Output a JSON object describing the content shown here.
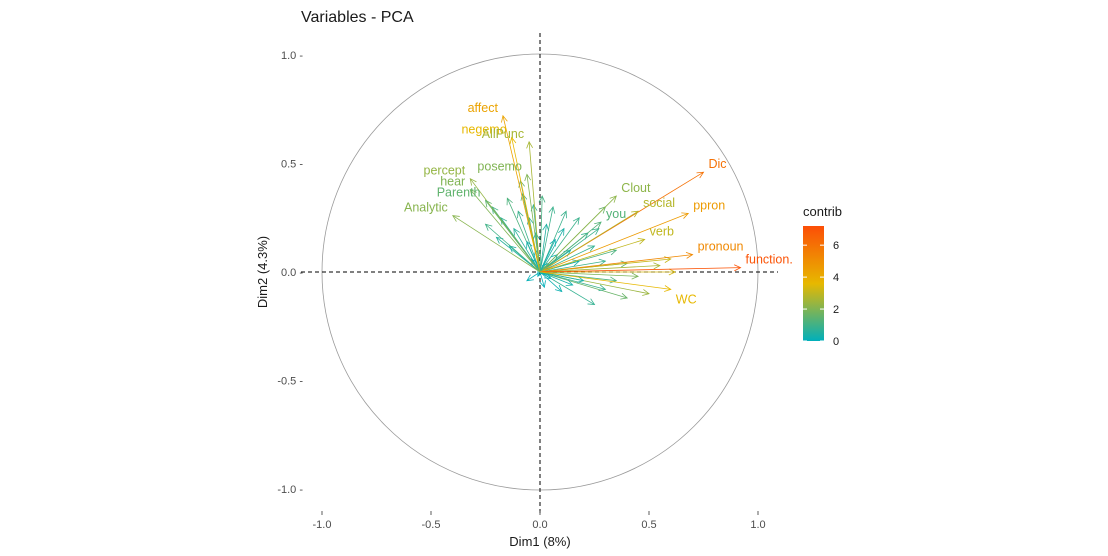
{
  "chart_data": {
    "type": "scatter",
    "subtype": "pca-variable-correlation-circle",
    "title": "Variables - PCA",
    "xlabel": "Dim1 (8%)",
    "ylabel": "Dim2 (4.3%)",
    "xlim": [
      -1.1,
      1.1
    ],
    "ylim": [
      -1.1,
      1.1
    ],
    "x_ticks": [
      -1.0,
      -0.5,
      0.0,
      0.5,
      1.0
    ],
    "y_ticks": [
      -1.0,
      -0.5,
      0.0,
      0.5,
      1.0
    ],
    "x_tick_labels": [
      "-1.0",
      "-0.5",
      "0.0",
      "0.5",
      "1.0"
    ],
    "y_tick_labels": [
      "-1.0 -",
      "-0.5 -",
      "0.0 -",
      "0.5 -",
      "1.0 -"
    ],
    "grid": false,
    "legend": {
      "title": "contrib",
      "position": "right",
      "min": 0,
      "max": 7.2,
      "ticks": [
        0,
        2,
        4,
        6
      ],
      "tick_labels": [
        "0",
        "2",
        "4",
        "6"
      ],
      "colors": [
        "#00AFBB",
        "#E7B800",
        "#FC4E07"
      ]
    },
    "labeled_variables": [
      {
        "name": "affect",
        "x": -0.17,
        "y": 0.72,
        "contrib": 4.3
      },
      {
        "name": "negemo",
        "x": -0.13,
        "y": 0.62,
        "contrib": 3.6
      },
      {
        "name": "AllPunc",
        "x": -0.05,
        "y": 0.6,
        "contrib": 2.6
      },
      {
        "name": "posemo",
        "x": -0.06,
        "y": 0.45,
        "contrib": 2.0
      },
      {
        "name": "percept",
        "x": -0.32,
        "y": 0.43,
        "contrib": 2.3
      },
      {
        "name": "hear",
        "x": -0.32,
        "y": 0.38,
        "contrib": 2.0
      },
      {
        "name": "Parenth",
        "x": -0.25,
        "y": 0.33,
        "contrib": 1.5
      },
      {
        "name": "Analytic",
        "x": -0.4,
        "y": 0.26,
        "contrib": 2.1
      },
      {
        "name": "Clout",
        "x": 0.35,
        "y": 0.35,
        "contrib": 2.2
      },
      {
        "name": "Dic",
        "x": 0.75,
        "y": 0.46,
        "contrib": 6.0
      },
      {
        "name": "social",
        "x": 0.45,
        "y": 0.28,
        "contrib": 2.8
      },
      {
        "name": "ppron",
        "x": 0.68,
        "y": 0.27,
        "contrib": 4.6
      },
      {
        "name": "you",
        "x": 0.28,
        "y": 0.23,
        "contrib": 1.3
      },
      {
        "name": "verb",
        "x": 0.48,
        "y": 0.15,
        "contrib": 3.0
      },
      {
        "name": "pronoun",
        "x": 0.7,
        "y": 0.08,
        "contrib": 5.2
      },
      {
        "name": "function.",
        "x": 0.92,
        "y": 0.02,
        "contrib": 7.0
      },
      {
        "name": "WC",
        "x": 0.6,
        "y": -0.08,
        "contrib": 3.6
      }
    ],
    "unlabeled_arrows": [
      [
        -0.22,
        0.3,
        1.0
      ],
      [
        -0.18,
        0.25,
        0.8
      ],
      [
        -0.15,
        0.34,
        1.2
      ],
      [
        -0.1,
        0.28,
        0.9
      ],
      [
        -0.12,
        0.2,
        0.6
      ],
      [
        -0.08,
        0.36,
        1.3
      ],
      [
        -0.05,
        0.25,
        0.7
      ],
      [
        -0.03,
        0.31,
        0.9
      ],
      [
        -0.06,
        0.14,
        0.3
      ],
      [
        -0.14,
        0.12,
        0.4
      ],
      [
        -0.2,
        0.16,
        0.6
      ],
      [
        -0.25,
        0.22,
        1.0
      ],
      [
        -0.09,
        0.42,
        1.6
      ],
      [
        -0.02,
        0.18,
        0.4
      ],
      [
        0.01,
        0.35,
        1.1
      ],
      [
        0.03,
        0.22,
        0.5
      ],
      [
        0.06,
        0.3,
        0.9
      ],
      [
        0.12,
        0.28,
        0.9
      ],
      [
        0.18,
        0.25,
        0.9
      ],
      [
        0.22,
        0.18,
        0.8
      ],
      [
        0.3,
        0.3,
        1.6
      ],
      [
        0.25,
        0.12,
        0.8
      ],
      [
        0.35,
        0.1,
        1.2
      ],
      [
        0.3,
        0.05,
        0.9
      ],
      [
        0.4,
        0.04,
        1.5
      ],
      [
        0.55,
        0.03,
        2.6
      ],
      [
        0.45,
        -0.02,
        1.9
      ],
      [
        0.5,
        -0.1,
        2.4
      ],
      [
        0.4,
        -0.12,
        1.6
      ],
      [
        0.3,
        -0.08,
        0.9
      ],
      [
        0.25,
        -0.15,
        0.8
      ],
      [
        0.15,
        -0.06,
        0.3
      ],
      [
        0.2,
        -0.04,
        0.4
      ],
      [
        0.1,
        -0.09,
        0.2
      ],
      [
        0.35,
        -0.04,
        1.2
      ],
      [
        0.6,
        0.06,
        3.1
      ],
      [
        0.62,
        0.0,
        3.3
      ],
      [
        0.08,
        0.08,
        0.1
      ],
      [
        -0.04,
        0.06,
        0.1
      ],
      [
        0.05,
        -0.03,
        0.05
      ],
      [
        -0.06,
        -0.04,
        0.1
      ],
      [
        0.02,
        -0.07,
        0.05
      ],
      [
        0.14,
        0.1,
        0.3
      ],
      [
        0.18,
        0.05,
        0.3
      ],
      [
        0.07,
        0.15,
        0.2
      ],
      [
        -0.02,
        0.1,
        0.1
      ],
      [
        0.11,
        0.2,
        0.4
      ],
      [
        0.27,
        0.2,
        0.9
      ],
      [
        -0.01,
        -0.02,
        0.02
      ],
      [
        0.04,
        0.04,
        0.03
      ]
    ]
  }
}
